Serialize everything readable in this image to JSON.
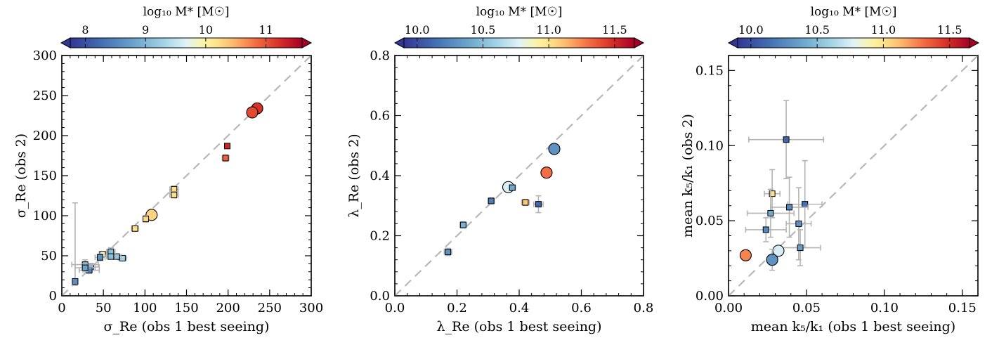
{
  "chart_data": [
    {
      "type": "scatter",
      "xlabel": "σ_Re (obs 1 best seeing)",
      "ylabel": "σ_Re (obs 2)",
      "xlim": [
        0,
        300
      ],
      "ylim": [
        0,
        300
      ],
      "xticks": [
        "0",
        "50",
        "100",
        "150",
        "200",
        "250",
        "300"
      ],
      "yticks": [
        "0",
        "50",
        "100",
        "150",
        "200",
        "250",
        "300"
      ],
      "one_to_one_line": true,
      "colorbar": {
        "label": "log₁₀ M* [M☉]",
        "range": [
          7.75,
          11.6
        ],
        "ticks": [
          "8",
          "9",
          "10",
          "11"
        ]
      },
      "points": [
        {
          "x": 235,
          "y": 234,
          "m": 11.2,
          "shape": "circle"
        },
        {
          "x": 229,
          "y": 229,
          "m": 11.05,
          "shape": "circle"
        },
        {
          "x": 199,
          "y": 187,
          "m": 11.3,
          "shape": "square"
        },
        {
          "x": 197,
          "y": 172,
          "m": 10.9,
          "shape": "square",
          "xerr": 4,
          "yerr": 4
        },
        {
          "x": 135,
          "y": 133,
          "m": 10.2,
          "shape": "square",
          "xerr": 5,
          "yerr": 4
        },
        {
          "x": 135,
          "y": 126,
          "m": 10.2,
          "shape": "square",
          "xerr": 5,
          "yerr": 4
        },
        {
          "x": 108,
          "y": 101,
          "m": 10.3,
          "shape": "circle"
        },
        {
          "x": 101,
          "y": 96,
          "m": 10.25,
          "shape": "square",
          "xerr": 3,
          "yerr": 4
        },
        {
          "x": 88,
          "y": 84,
          "m": 10.2,
          "shape": "square",
          "xerr": 4,
          "yerr": 3
        },
        {
          "x": 73,
          "y": 47,
          "m": 9.3,
          "shape": "square",
          "xerr": 5,
          "yerr": 3
        },
        {
          "x": 66,
          "y": 49,
          "m": 9.2,
          "shape": "square",
          "xerr": 5,
          "yerr": 3
        },
        {
          "x": 59,
          "y": 55,
          "m": 9.1,
          "shape": "square",
          "xerr": 5,
          "yerr": 5
        },
        {
          "x": 59,
          "y": 49,
          "m": 9.1,
          "shape": "square",
          "xerr": 5,
          "yerr": 3
        },
        {
          "x": 49,
          "y": 52,
          "m": 9.9,
          "shape": "square",
          "xerr": 4,
          "yerr": 3
        },
        {
          "x": 46,
          "y": 48,
          "m": 8.6,
          "shape": "square",
          "xerr": 6,
          "yerr": 4
        },
        {
          "x": 35,
          "y": 36,
          "m": 9.0,
          "shape": "square",
          "xerr": 10,
          "yerr": 4
        },
        {
          "x": 33,
          "y": 32,
          "m": 8.5,
          "shape": "square",
          "xerr": 12,
          "yerr": 4
        },
        {
          "x": 28,
          "y": 39,
          "m": 8.9,
          "shape": "square",
          "xerr": 16,
          "yerr": 6
        },
        {
          "x": 28,
          "y": 35,
          "m": 8.8,
          "shape": "square",
          "xerr": 12,
          "yerr": 5
        },
        {
          "x": 16,
          "y": 18,
          "m": 8.6,
          "shape": "square",
          "yerr_up": 98,
          "yerr_down": 5,
          "xerr": 3
        }
      ]
    },
    {
      "type": "scatter",
      "xlabel": "λ_Re (obs 1 best seeing)",
      "ylabel": "λ_Re (obs 2)",
      "xlim": [
        0,
        0.8
      ],
      "ylim": [
        0,
        0.8
      ],
      "xticks": [
        "0.0",
        "0.2",
        "0.4",
        "0.6",
        "0.8"
      ],
      "yticks": [
        "0.0",
        "0.2",
        "0.4",
        "0.6",
        "0.8"
      ],
      "one_to_one_line": true,
      "colorbar": {
        "label": "log₁₀ M* [M☉]",
        "range": [
          9.9,
          11.65
        ],
        "ticks": [
          "10.0",
          "10.5",
          "11.0",
          "11.5"
        ]
      },
      "points": [
        {
          "x": 0.513,
          "y": 0.489,
          "m": 10.3,
          "shape": "circle"
        },
        {
          "x": 0.488,
          "y": 0.41,
          "m": 11.3,
          "shape": "circle"
        },
        {
          "x": 0.365,
          "y": 0.362,
          "m": 10.75,
          "shape": "circle"
        },
        {
          "x": 0.378,
          "y": 0.36,
          "m": 10.4,
          "shape": "square",
          "xerr": 0.01,
          "yerr": 0.006
        },
        {
          "x": 0.31,
          "y": 0.316,
          "m": 10.2,
          "shape": "square",
          "xerr": 0.01,
          "yerr": 0.01
        },
        {
          "x": 0.42,
          "y": 0.311,
          "m": 11.1,
          "shape": "square",
          "xerr": 0.012,
          "yerr": 0.01
        },
        {
          "x": 0.462,
          "y": 0.305,
          "m": 10.1,
          "shape": "square",
          "xerr": 0.015,
          "yerr": 0.028
        },
        {
          "x": 0.22,
          "y": 0.236,
          "m": 10.45,
          "shape": "square",
          "xerr": 0.01,
          "yerr": 0.01
        },
        {
          "x": 0.171,
          "y": 0.146,
          "m": 10.3,
          "shape": "square",
          "xerr": 0.012,
          "yerr": 0.012
        }
      ]
    },
    {
      "type": "scatter",
      "xlabel": "mean k₅/k₁ (obs 1 best seeing)",
      "ylabel": "mean k₅/k₁ (obs 2)",
      "xlim": [
        0,
        0.16
      ],
      "ylim": [
        0,
        0.16
      ],
      "xticks": [
        "0.00",
        "0.05",
        "0.10",
        "0.15"
      ],
      "yticks": [
        "0.00",
        "0.05",
        "0.10",
        "0.15"
      ],
      "one_to_one_line": true,
      "colorbar": {
        "label": "log₁₀ M* [M☉]",
        "range": [
          9.9,
          11.65
        ],
        "ticks": [
          "10.0",
          "10.5",
          "11.0",
          "11.5"
        ]
      },
      "points": [
        {
          "x": 0.037,
          "y": 0.104,
          "m": 10.1,
          "shape": "square",
          "xerr_left": 0.024,
          "xerr_right": 0.024,
          "yerr_up": 0.026,
          "yerr_down": 0.026
        },
        {
          "x": 0.028,
          "y": 0.068,
          "m": 11.0,
          "shape": "square",
          "xerr": 0.005,
          "yerr": 0.016
        },
        {
          "x": 0.049,
          "y": 0.061,
          "m": 10.15,
          "shape": "square",
          "xerr": 0.011,
          "yerr": 0.029
        },
        {
          "x": 0.039,
          "y": 0.059,
          "m": 10.25,
          "shape": "square",
          "xerr": 0.012,
          "yerr": 0.02
        },
        {
          "x": 0.027,
          "y": 0.055,
          "m": 10.4,
          "shape": "square",
          "xerr": 0.015,
          "yerr": 0.016
        },
        {
          "x": 0.045,
          "y": 0.048,
          "m": 10.3,
          "shape": "square",
          "xerr": 0.008,
          "yerr": 0.024
        },
        {
          "x": 0.024,
          "y": 0.044,
          "m": 10.25,
          "shape": "square",
          "xerr": 0.013,
          "yerr": 0.008
        },
        {
          "x": 0.046,
          "y": 0.032,
          "m": 10.35,
          "shape": "square",
          "xerr": 0.013,
          "yerr": 0.012
        },
        {
          "x": 0.032,
          "y": 0.03,
          "m": 10.75,
          "shape": "circle",
          "xerr": 0.002,
          "yerr": 0.003
        },
        {
          "x": 0.028,
          "y": 0.024,
          "m": 10.3,
          "shape": "circle",
          "xerr": 0.002,
          "yerr": 0.007
        },
        {
          "x": 0.011,
          "y": 0.027,
          "m": 11.25,
          "shape": "circle",
          "xerr": 0.002,
          "yerr": 0.003
        }
      ]
    }
  ]
}
